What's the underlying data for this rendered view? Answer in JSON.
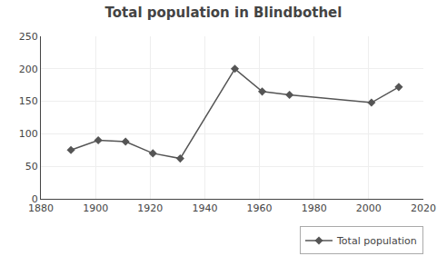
{
  "chart_data": {
    "type": "line",
    "title": "Total population in Blindbothel",
    "x": [
      1891,
      1901,
      1911,
      1921,
      1931,
      1951,
      1961,
      1971,
      2001,
      2011
    ],
    "series": [
      {
        "name": "Total population",
        "color": "#555555",
        "marker": "diamond",
        "values": [
          75,
          90,
          88,
          70,
          62,
          200,
          165,
          160,
          148,
          172
        ]
      }
    ],
    "xlim": [
      1880,
      2020
    ],
    "ylim": [
      0,
      250
    ],
    "xticks": [
      1880,
      1900,
      1920,
      1940,
      1960,
      1980,
      2000,
      2020
    ],
    "yticks": [
      0,
      50,
      100,
      150,
      200,
      250
    ],
    "grid": true,
    "legend": "lower right"
  }
}
